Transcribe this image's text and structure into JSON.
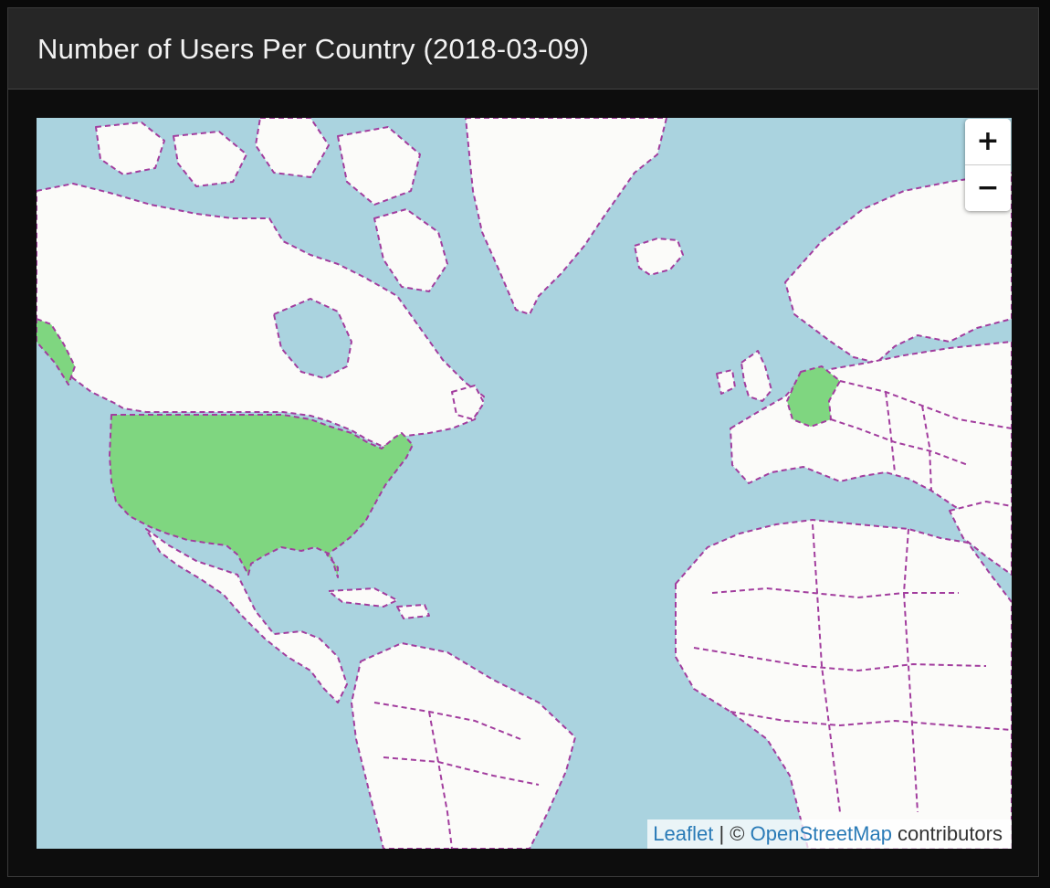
{
  "panel": {
    "title": "Number of Users Per Country (2018-03-09)"
  },
  "map": {
    "zoom_in_label": "+",
    "zoom_out_label": "−",
    "attribution": {
      "leaflet": "Leaflet",
      "separator": " | © ",
      "osm": "OpenStreetMap",
      "contributors": " contributors"
    },
    "colors": {
      "water": "#aad3df",
      "land": "#fbfbf9",
      "border": "#a23d9e",
      "highlight": "#7fd680"
    },
    "highlighted_countries": [
      "United States",
      "Germany"
    ]
  }
}
